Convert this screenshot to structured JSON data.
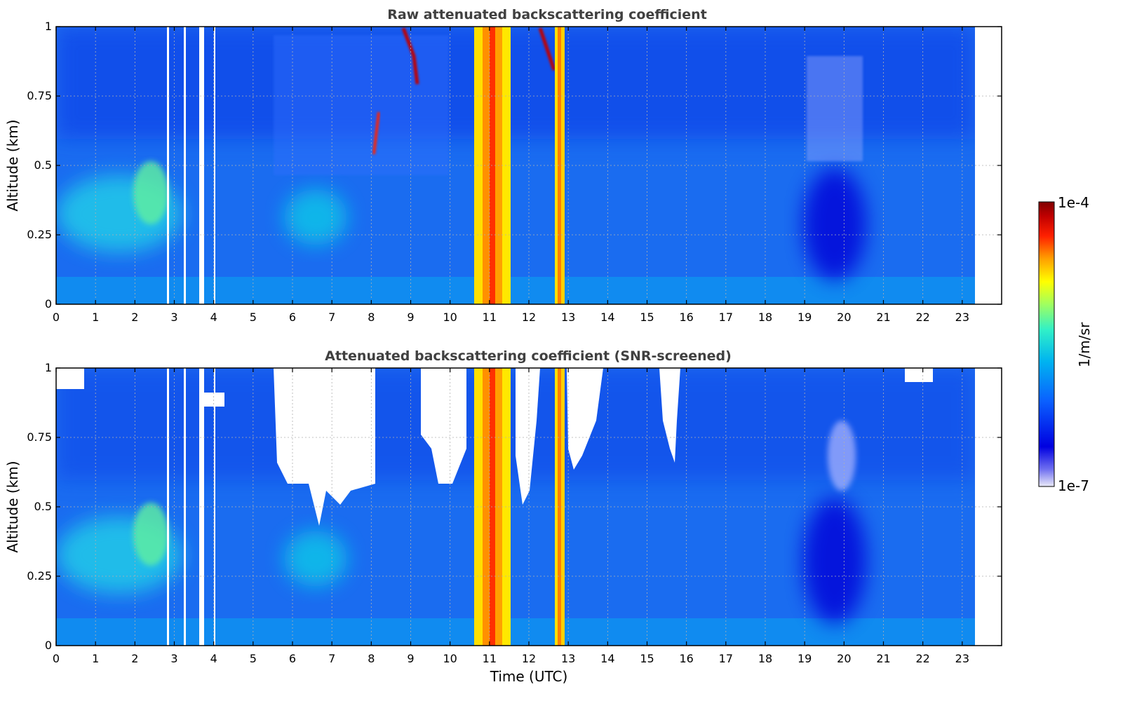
{
  "chart_data": [
    {
      "type": "heatmap",
      "title": "Raw attenuated backscattering coefficient",
      "xlabel": "",
      "ylabel": "Altitude (km)",
      "xlim": [
        0,
        24
      ],
      "ylim": [
        0,
        1
      ],
      "data_end_hour": 23.3,
      "xticks": [
        "0",
        "1",
        "2",
        "3",
        "4",
        "5",
        "6",
        "7",
        "8",
        "9",
        "10",
        "11",
        "12",
        "13",
        "14",
        "15",
        "16",
        "17",
        "18",
        "19",
        "20",
        "21",
        "22",
        "23"
      ],
      "yticks": [
        "0",
        "0.25",
        "0.5",
        "0.75",
        "1"
      ],
      "grid": true,
      "gaps_hours": [
        [
          2.85,
          2.9
        ],
        [
          3.1,
          3.15
        ],
        [
          3.65,
          3.75
        ],
        [
          4.0,
          4.05
        ]
      ],
      "features": [
        {
          "desc": "aerosol layer",
          "x": [
            1.3,
            3.0
          ],
          "y": [
            0.2,
            0.55
          ],
          "level": "cyan-green"
        },
        {
          "desc": "aerosol layer",
          "x": [
            5.8,
            7.5
          ],
          "y": [
            0.2,
            0.45
          ],
          "level": "cyan"
        },
        {
          "desc": "thin cloud streaks",
          "x": [
            8.0,
            9.3
          ],
          "y": [
            0.45,
            1.0
          ],
          "level": "red"
        },
        {
          "desc": "precipitation / cloud column",
          "x": [
            10.6,
            11.6
          ],
          "y": [
            0.0,
            1.0
          ],
          "level": "yellow-red"
        },
        {
          "desc": "precipitation / cloud column",
          "x": [
            12.65,
            12.85
          ],
          "y": [
            0.0,
            1.0
          ],
          "level": "yellow-red"
        },
        {
          "desc": "clean low-backscatter region",
          "x": [
            19.0,
            20.5
          ],
          "y": [
            0.0,
            0.6
          ],
          "level": "dark-blue"
        },
        {
          "desc": "noisy upper region",
          "x": [
            5.5,
            23.3
          ],
          "y": [
            0.6,
            1.0
          ],
          "level": "blue-noise"
        }
      ]
    },
    {
      "type": "heatmap",
      "title": "Attenuated backscattering coefficient (SNR-screened)",
      "xlabel": "Time (UTC)",
      "ylabel": "Altitude (km)",
      "xlim": [
        0,
        24
      ],
      "ylim": [
        0,
        1
      ],
      "data_end_hour": 23.3,
      "xticks": [
        "0",
        "1",
        "2",
        "3",
        "4",
        "5",
        "6",
        "7",
        "8",
        "9",
        "10",
        "11",
        "12",
        "13",
        "14",
        "15",
        "16",
        "17",
        "18",
        "19",
        "20",
        "21",
        "22",
        "23"
      ],
      "yticks": [
        "0",
        "0.25",
        "0.5",
        "0.75",
        "1"
      ],
      "grid": true,
      "gaps_hours": [
        [
          2.85,
          2.9
        ],
        [
          3.1,
          3.15
        ],
        [
          3.65,
          3.75
        ],
        [
          4.0,
          4.05
        ]
      ],
      "screened_regions": [
        {
          "x": [
            5.5,
            8.2
          ],
          "y": [
            0.5,
            1.0
          ]
        },
        {
          "x": [
            9.6,
            10.5
          ],
          "y": [
            0.6,
            1.0
          ]
        },
        {
          "x": [
            11.5,
            12.3
          ],
          "y": [
            0.55,
            1.0
          ]
        },
        {
          "x": [
            13.0,
            14.0
          ],
          "y": [
            0.65,
            1.0
          ]
        },
        {
          "x": [
            15.3,
            15.6
          ],
          "y": [
            0.6,
            1.0
          ]
        }
      ]
    }
  ],
  "colorbar": {
    "label": "1/m/sr",
    "max_label": "1e-4",
    "min_label": "1e-7",
    "scale": "log",
    "colormap": [
      "#e8e8f8",
      "#0000e0",
      "#0a60ff",
      "#00b4f0",
      "#30f0c8",
      "#a0ff60",
      "#ffff00",
      "#ffa000",
      "#ff2000",
      "#c00000",
      "#800000"
    ]
  }
}
